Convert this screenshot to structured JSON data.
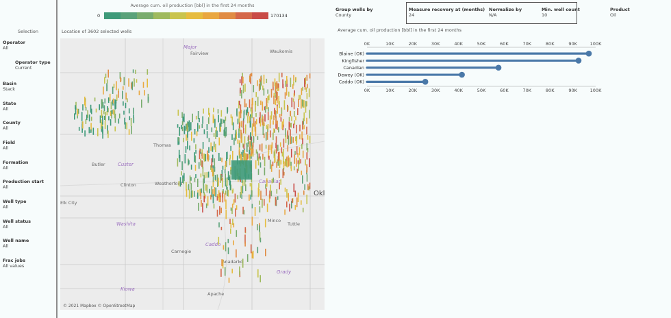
{
  "sidebar": {
    "title": "Selection",
    "filters": [
      {
        "label": "Operator",
        "value": "All"
      },
      {
        "label": "Operator type",
        "value": "Current"
      },
      {
        "label": "Basin",
        "value": "Stack"
      },
      {
        "label": "State",
        "value": "All"
      },
      {
        "label": "County",
        "value": "All"
      },
      {
        "label": "Field",
        "value": "All"
      },
      {
        "label": "Formation",
        "value": "All"
      },
      {
        "label": "Production start",
        "value": "All"
      },
      {
        "label": "Well type",
        "value": "All"
      },
      {
        "label": "Well status",
        "value": "All"
      },
      {
        "label": "Well name",
        "value": "All"
      },
      {
        "label": "Frac jobs",
        "value": "All values"
      }
    ]
  },
  "legend": {
    "title": "Average cum. oil production [bbl] in the first 24 months",
    "min": "0",
    "max": "170134",
    "colors": [
      "#3e9a79",
      "#5aa27a",
      "#79ac6e",
      "#9fba5e",
      "#c9c44d",
      "#e6bc3f",
      "#e9a740",
      "#e08c44",
      "#d4684a",
      "#c94b47"
    ]
  },
  "map": {
    "title": "Location of 3602 selected wells",
    "attribution": "© 2021 Mapbox © OpenStreetMap",
    "places": {
      "major": "Major",
      "fairview": "Fairview",
      "waukomis": "Waukomis",
      "thomas": "Thomas",
      "custer": "Custer",
      "butler": "Butler",
      "clinton": "Clinton",
      "weatherford": "Weatherford",
      "canadian": "Canadian",
      "elk_city": "Elk City",
      "washita": "Washita",
      "caddo": "Caddo",
      "carnegie": "Carnegie",
      "anadarko": "Anadarko",
      "minco": "Minco",
      "tuttle": "Tuttle",
      "grady": "Grady",
      "kiowa": "Kiowa",
      "apache": "Apache",
      "okla": "Okl"
    }
  },
  "controls": {
    "group_by": {
      "label": "Group wells by",
      "value": "County"
    },
    "recovery": {
      "label": "Measure recovery at (months)",
      "value": "24"
    },
    "normalize": {
      "label": "Normalize by",
      "value": "N/A"
    },
    "min_count": {
      "label": "Min. well count",
      "value": "10"
    },
    "product": {
      "label": "Product",
      "value": "Oil"
    }
  },
  "chart_data": {
    "type": "bar",
    "title": "Average cum. oil production [bbl] in the first 24 months",
    "categories": [
      "Blaine (OK)",
      "Kingfisher",
      "Canadian",
      "Dewey (OK)",
      "Caddo (OK)"
    ],
    "values": [
      97000,
      92500,
      57500,
      41500,
      25500
    ],
    "ticks": [
      "0K",
      "10K",
      "20K",
      "30K",
      "40K",
      "50K",
      "60K",
      "70K",
      "80K",
      "90K",
      "100K"
    ],
    "xlim": [
      0,
      100000
    ],
    "color": "#4a78a8",
    "grid": false
  }
}
